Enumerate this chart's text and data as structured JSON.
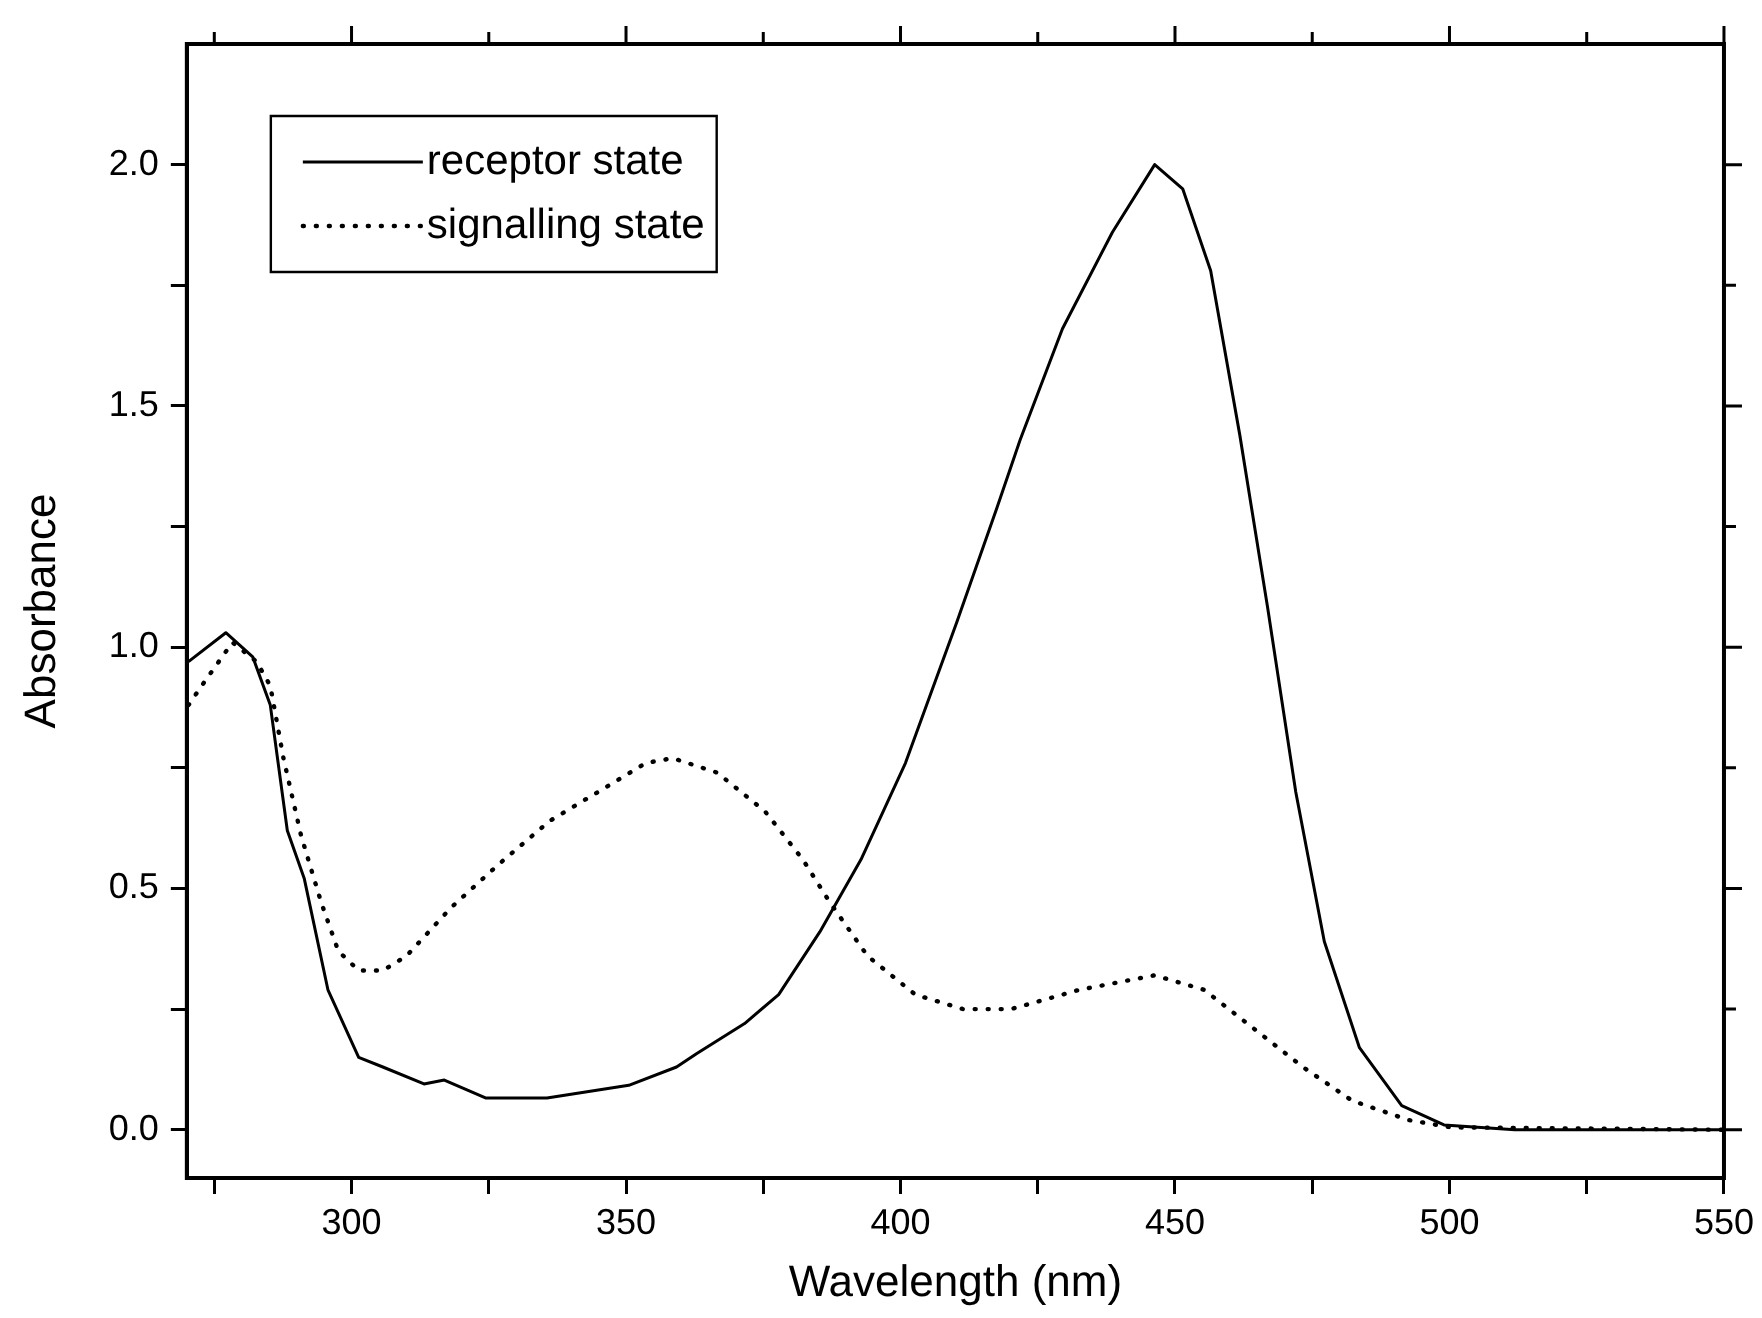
{
  "chart_data": {
    "type": "line",
    "xlabel": "Wavelength (nm)",
    "ylabel": "Absorbance",
    "xlim": [
      270,
      550
    ],
    "ylim": [
      -0.1,
      2.25
    ],
    "xticks": [
      {
        "value": 275,
        "label": null
      },
      300,
      {
        "value": 325,
        "label": null
      },
      350,
      {
        "value": 375,
        "label": null
      },
      400,
      {
        "value": 425,
        "label": null
      },
      450,
      {
        "value": 475,
        "label": null
      },
      500,
      {
        "value": 525,
        "label": null
      },
      550
    ],
    "yticks": [
      {
        "value": 0,
        "label": "0.0"
      },
      {
        "value": 0.25,
        "label": null
      },
      0.5,
      {
        "value": 0.75,
        "label": null
      },
      {
        "value": 1,
        "label": "1.0"
      },
      {
        "value": 1.25,
        "label": null
      },
      1.5,
      {
        "value": 1.75,
        "label": null
      },
      {
        "value": 2,
        "label": "2.0"
      }
    ],
    "grid": false,
    "legend": "top left",
    "marker": "none",
    "series": [
      {
        "name": "receptor state",
        "color": "#000000",
        "line_style": "solid",
        "x": [
          270.3,
          277.1,
          282,
          285.2,
          288.3,
          291.4,
          295.7,
          301.3,
          305.7,
          313.2,
          316.9,
          324.4,
          335.6,
          350.5,
          359.2,
          362.9,
          371.6,
          377.8,
          385.3,
          392.8,
          400.9,
          410.2,
          417.6,
          421.8,
          429.5,
          438.6,
          446.3,
          451.4,
          456.5,
          461.8,
          466.9,
          472,
          477.2,
          483.6,
          491.3,
          499,
          511.9,
          550
        ],
        "values": [
          0.97,
          1.03,
          0.98,
          0.88,
          0.62,
          0.52,
          0.29,
          0.15,
          0.13,
          0.095,
          0.103,
          0.066,
          0.066,
          0.092,
          0.13,
          0.158,
          0.22,
          0.28,
          0.41,
          0.56,
          0.76,
          1.05,
          1.29,
          1.43,
          1.66,
          1.86,
          2.0,
          1.95,
          1.78,
          1.44,
          1.08,
          0.7,
          0.39,
          0.17,
          0.05,
          0.01,
          0,
          0
        ]
      },
      {
        "name": "signalling state",
        "color": "#000000",
        "line_style": "dotted",
        "x": [
          270.3,
          272.7,
          278.3,
          282.7,
          285.2,
          287.6,
          290.8,
          294.5,
          297.6,
          301.3,
          305.7,
          310,
          318.1,
          326.8,
          336.1,
          344.9,
          353.6,
          358.5,
          366.6,
          375.3,
          382.2,
          387.2,
          394,
          402.7,
          411.4,
          420.1,
          432.6,
          446.3,
          455.3,
          464.3,
          473.3,
          482.3,
          492.6,
          500.3,
          550
        ],
        "values": [
          0.88,
          0.92,
          1.01,
          0.97,
          0.92,
          0.77,
          0.61,
          0.47,
          0.37,
          0.33,
          0.33,
          0.36,
          0.46,
          0.55,
          0.64,
          0.7,
          0.76,
          0.77,
          0.74,
          0.66,
          0.56,
          0.47,
          0.36,
          0.28,
          0.25,
          0.25,
          0.29,
          0.32,
          0.29,
          0.21,
          0.13,
          0.06,
          0.02,
          0.005,
          0
        ]
      }
    ]
  }
}
